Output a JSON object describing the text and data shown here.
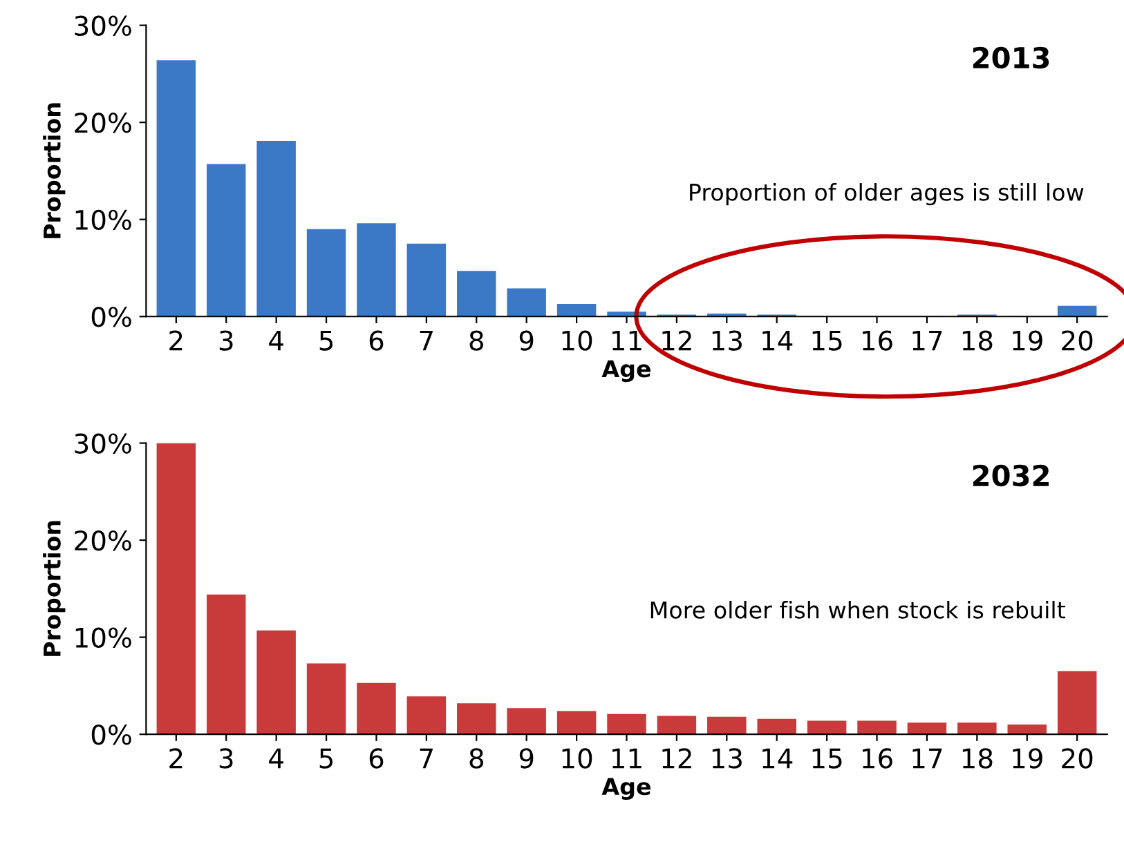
{
  "chart_data": [
    {
      "type": "bar",
      "title": "2013",
      "xlabel": "Age",
      "ylabel": "Proportion",
      "categories": [
        "2",
        "3",
        "4",
        "5",
        "6",
        "7",
        "8",
        "9",
        "10",
        "11",
        "12",
        "13",
        "14",
        "15",
        "16",
        "17",
        "18",
        "19",
        "20"
      ],
      "values": [
        26.4,
        15.7,
        18.1,
        9.0,
        9.6,
        7.5,
        4.7,
        2.9,
        1.3,
        0.5,
        0.2,
        0.3,
        0.2,
        0,
        0,
        0,
        0.2,
        0,
        1.1
      ],
      "color": "#3b78c6",
      "ylim": [
        0,
        30
      ],
      "yticks": [
        {
          "value": 0,
          "label": "0%"
        },
        {
          "value": 10,
          "label": "10%"
        },
        {
          "value": 20,
          "label": "20%"
        },
        {
          "value": 30,
          "label": "30%"
        }
      ],
      "grid": false,
      "annotations": [
        "Proportion of older ages is still low"
      ]
    },
    {
      "type": "bar",
      "title": "2032",
      "xlabel": "Age",
      "ylabel": "Proportion",
      "categories": [
        "2",
        "3",
        "4",
        "5",
        "6",
        "7",
        "8",
        "9",
        "10",
        "11",
        "12",
        "13",
        "14",
        "15",
        "16",
        "17",
        "18",
        "19",
        "20"
      ],
      "values": [
        30,
        14.4,
        10.7,
        7.3,
        5.3,
        3.9,
        3.2,
        2.7,
        2.4,
        2.1,
        1.9,
        1.8,
        1.6,
        1.4,
        1.4,
        1.2,
        1.2,
        1.0,
        6.5
      ],
      "color": "#c93a3a",
      "ylim": [
        0,
        30
      ],
      "yticks": [
        {
          "value": 0,
          "label": "0%"
        },
        {
          "value": 10,
          "label": "10%"
        },
        {
          "value": 20,
          "label": "20%"
        },
        {
          "value": 30,
          "label": "30%"
        }
      ],
      "grid": false,
      "annotations": [
        "More older fish when stock is rebuilt"
      ]
    }
  ]
}
